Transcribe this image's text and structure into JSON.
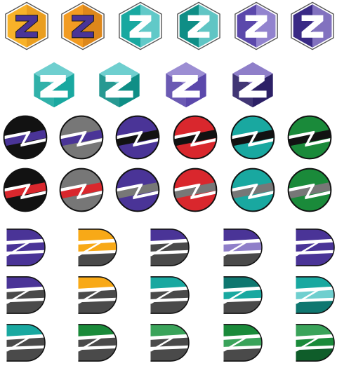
{
  "sheet": {
    "background": "#ffffff",
    "outline": "#111111",
    "slash": "#ffffff",
    "shadow": "#4a4a4a"
  },
  "colors": {
    "orange": "#f29b22",
    "orange_dark": "#e38214",
    "amber": "#f8a917",
    "purple": "#4a3497",
    "purple_light": "#8f7fc9",
    "purple_dark": "#2c2066",
    "teal": "#19a8a0",
    "teal_light": "#6fcfcf",
    "teal_dark": "#0f7770",
    "green": "#1a8a3a",
    "green_mid": "#3aa35a",
    "green_dark": "#0f5d2a",
    "red": "#d9272d",
    "grey": "#777777",
    "black": "#121212"
  },
  "rows": [
    {
      "name": "hexagon-badges-row-1",
      "icons": [
        {
          "shape": "hex-z",
          "fill": "#f8b229",
          "accent": "#4a3497",
          "side": "#e89a1d"
        },
        {
          "shape": "hex-z",
          "fill": "#f29b22",
          "accent": "#4a3497",
          "side": "#d9841a"
        },
        {
          "shape": "hex-z",
          "fill": "#19a8a0",
          "accent": "#ffffff",
          "side": "#6fcfcf"
        },
        {
          "shape": "hex-z",
          "fill": "#0f8e86",
          "accent": "#ffffff",
          "side": "#6fcfcf"
        },
        {
          "shape": "hex-z",
          "fill": "#5b48ab",
          "accent": "#ffffff",
          "side": "#9c8ed3"
        },
        {
          "shape": "hex-z",
          "fill": "#3a2a85",
          "accent": "#ffffff",
          "side": "#8f7fc9"
        }
      ]
    },
    {
      "name": "hexagon-badges-row-2",
      "icons": [
        {
          "shape": "hex-open",
          "fill": "#19a8a0",
          "accent": "#ffffff",
          "side": "#6fcfcf"
        },
        {
          "shape": "hex-open",
          "fill": "#0f8e86",
          "accent": "#ffffff",
          "side": "#6fcfcf"
        },
        {
          "shape": "hex-open",
          "fill": "#5b48ab",
          "accent": "#ffffff",
          "side": "#9c8ed3"
        },
        {
          "shape": "hex-open",
          "fill": "#2c2066",
          "accent": "#ffffff",
          "side": "#8f7fc9"
        }
      ]
    },
    {
      "name": "circle-badges-row-1",
      "icons": [
        {
          "shape": "circle-band",
          "top": "#121212",
          "band": "#4a3497",
          "bottom": "#121212"
        },
        {
          "shape": "circle-band",
          "top": "#777777",
          "band": "#4a3497",
          "bottom": "#777777"
        },
        {
          "shape": "circle-band",
          "top": "#4a3497",
          "band": "#121212",
          "bottom": "#4a3497"
        },
        {
          "shape": "circle-band",
          "top": "#d9272d",
          "band": "#121212",
          "bottom": "#d9272d"
        },
        {
          "shape": "circle-band",
          "top": "#19a8a0",
          "band": "#121212",
          "bottom": "#19a8a0"
        },
        {
          "shape": "circle-band",
          "top": "#1a8a3a",
          "band": "#121212",
          "bottom": "#1a8a3a"
        }
      ]
    },
    {
      "name": "circle-badges-row-2",
      "icons": [
        {
          "shape": "circle-band",
          "top": "#121212",
          "band": "#d9272d",
          "bottom": "#121212"
        },
        {
          "shape": "circle-band",
          "top": "#777777",
          "band": "#d9272d",
          "bottom": "#777777"
        },
        {
          "shape": "circle-band",
          "top": "#4a3497",
          "band": "#777777",
          "bottom": "#4a3497"
        },
        {
          "shape": "circle-band",
          "top": "#d9272d",
          "band": "#777777",
          "bottom": "#d9272d"
        },
        {
          "shape": "circle-band",
          "top": "#19a8a0",
          "band": "#777777",
          "bottom": "#19a8a0"
        },
        {
          "shape": "circle-band",
          "top": "#1a8a3a",
          "band": "#777777",
          "bottom": "#1a8a3a"
        }
      ]
    },
    {
      "name": "split-z-row-1",
      "icons": [
        {
          "shape": "split-z",
          "top": "#4a3497",
          "mid": "#4a3497",
          "bottom": "#4a3497"
        },
        {
          "shape": "split-z",
          "top": "#f8a917",
          "mid": "#f8a917",
          "bottom": "#4a4a4a"
        },
        {
          "shape": "split-z",
          "top": "#4a3497",
          "mid": "#4a4a4a",
          "bottom": "#4a4a4a"
        },
        {
          "shape": "split-z",
          "top": "#4a3497",
          "mid": "#8f7fc9",
          "bottom": "#4a4a4a"
        },
        {
          "shape": "split-z",
          "top": "#4a3497",
          "mid": "#4a3497",
          "bottom": "#4a3497"
        }
      ]
    },
    {
      "name": "split-z-row-2",
      "icons": [
        {
          "shape": "split-z",
          "top": "#4a3497",
          "mid": "#4a4a4a",
          "bottom": "#4a4a4a"
        },
        {
          "shape": "split-z",
          "top": "#f8a917",
          "mid": "#4a4a4a",
          "bottom": "#4a4a4a"
        },
        {
          "shape": "split-z",
          "top": "#19a8a0",
          "mid": "#4a4a4a",
          "bottom": "#4a4a4a"
        },
        {
          "shape": "split-z",
          "top": "#0f7770",
          "mid": "#19a8a0",
          "bottom": "#4a4a4a"
        },
        {
          "shape": "split-z",
          "top": "#19a8a0",
          "mid": "#6fcfcf",
          "bottom": "#0f7770"
        }
      ]
    },
    {
      "name": "split-z-row-3",
      "icons": [
        {
          "shape": "split-z",
          "top": "#19a8a0",
          "mid": "#4a4a4a",
          "bottom": "#4a4a4a"
        },
        {
          "shape": "split-z",
          "top": "#1a8a3a",
          "mid": "#4a4a4a",
          "bottom": "#4a4a4a"
        },
        {
          "shape": "split-z",
          "top": "#3aa35a",
          "mid": "#4a4a4a",
          "bottom": "#4a4a4a"
        },
        {
          "shape": "split-z",
          "top": "#1a8a3a",
          "mid": "#3aa35a",
          "bottom": "#4a4a4a"
        },
        {
          "shape": "split-z",
          "top": "#3aa35a",
          "mid": "#1a8a3a",
          "bottom": "#0f5d2a"
        }
      ]
    }
  ]
}
